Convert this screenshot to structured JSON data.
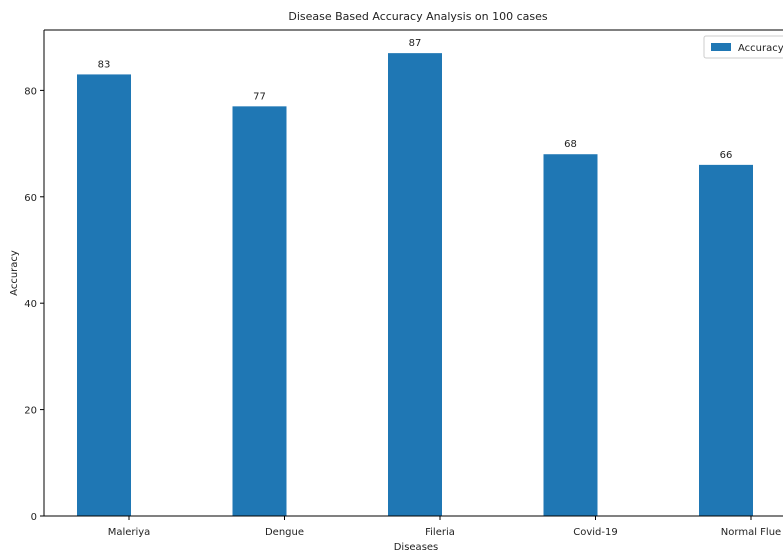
{
  "chart_data": {
    "type": "bar",
    "title": "Disease Based Accuracy Analysis on 100 cases",
    "xlabel": "Diseases",
    "ylabel": "Accuracy",
    "categories": [
      "Maleriya",
      "Dengue",
      "Fileria",
      "Covid-19",
      "Normal Flue"
    ],
    "series": [
      {
        "name": "Accuracy",
        "values": [
          83,
          77,
          87,
          68,
          66
        ],
        "color": "#1f77b4"
      }
    ],
    "data_labels": [
      "83",
      "77",
      "87",
      "68",
      "66"
    ],
    "y_ticks": [
      0,
      20,
      40,
      60,
      80
    ],
    "y_tick_labels": [
      "0",
      "20",
      "40",
      "60",
      "80"
    ],
    "ylim": [
      0,
      91.35
    ],
    "grid": false,
    "legend_position": "top-right"
  }
}
